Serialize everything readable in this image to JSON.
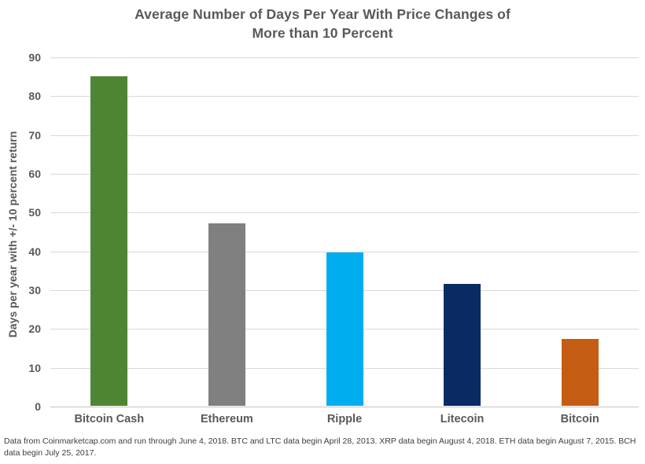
{
  "title": {
    "full": "Average Number of Days Per Year With Price Changes of More than 10 Percent",
    "line1": "Average Number of Days Per Year With Price Changes of",
    "line2": "More than 10 Percent"
  },
  "chart_data": {
    "type": "bar",
    "title": "Average Number of Days Per Year With Price Changes of More than 10 Percent",
    "categories": [
      "Bitcoin Cash",
      "Ethereum",
      "Ripple",
      "Litecoin",
      "Bitcoin"
    ],
    "values": [
      85,
      47,
      39.5,
      31.5,
      17.3
    ],
    "bar_colors": [
      "#4e8534",
      "#808080",
      "#00aeef",
      "#0a2a66",
      "#c55c13"
    ],
    "xlabel": "",
    "ylabel": "Days per year with +/- 10 percent return",
    "ylim": [
      0,
      90
    ],
    "yticks": [
      0,
      10,
      20,
      30,
      40,
      50,
      60,
      70,
      80,
      90
    ],
    "grid": true,
    "legend": false,
    "legend_position": "none"
  },
  "footnote": {
    "text": "Data from Coinmarketcap.com and run through June 4, 2018. BTC and LTC data begin April 28, 2013. XRP data begin August 4, 2018. ETH data begin August 7, 2015. BCH data begin July 25, 2017."
  },
  "colors": {
    "background": "#ffffff",
    "title_text": "#595959",
    "axis_text": "#595959",
    "gridline": "#d9d9d9",
    "baseline": "#c3c3c3",
    "footnote_text": "#3d3d3d"
  }
}
